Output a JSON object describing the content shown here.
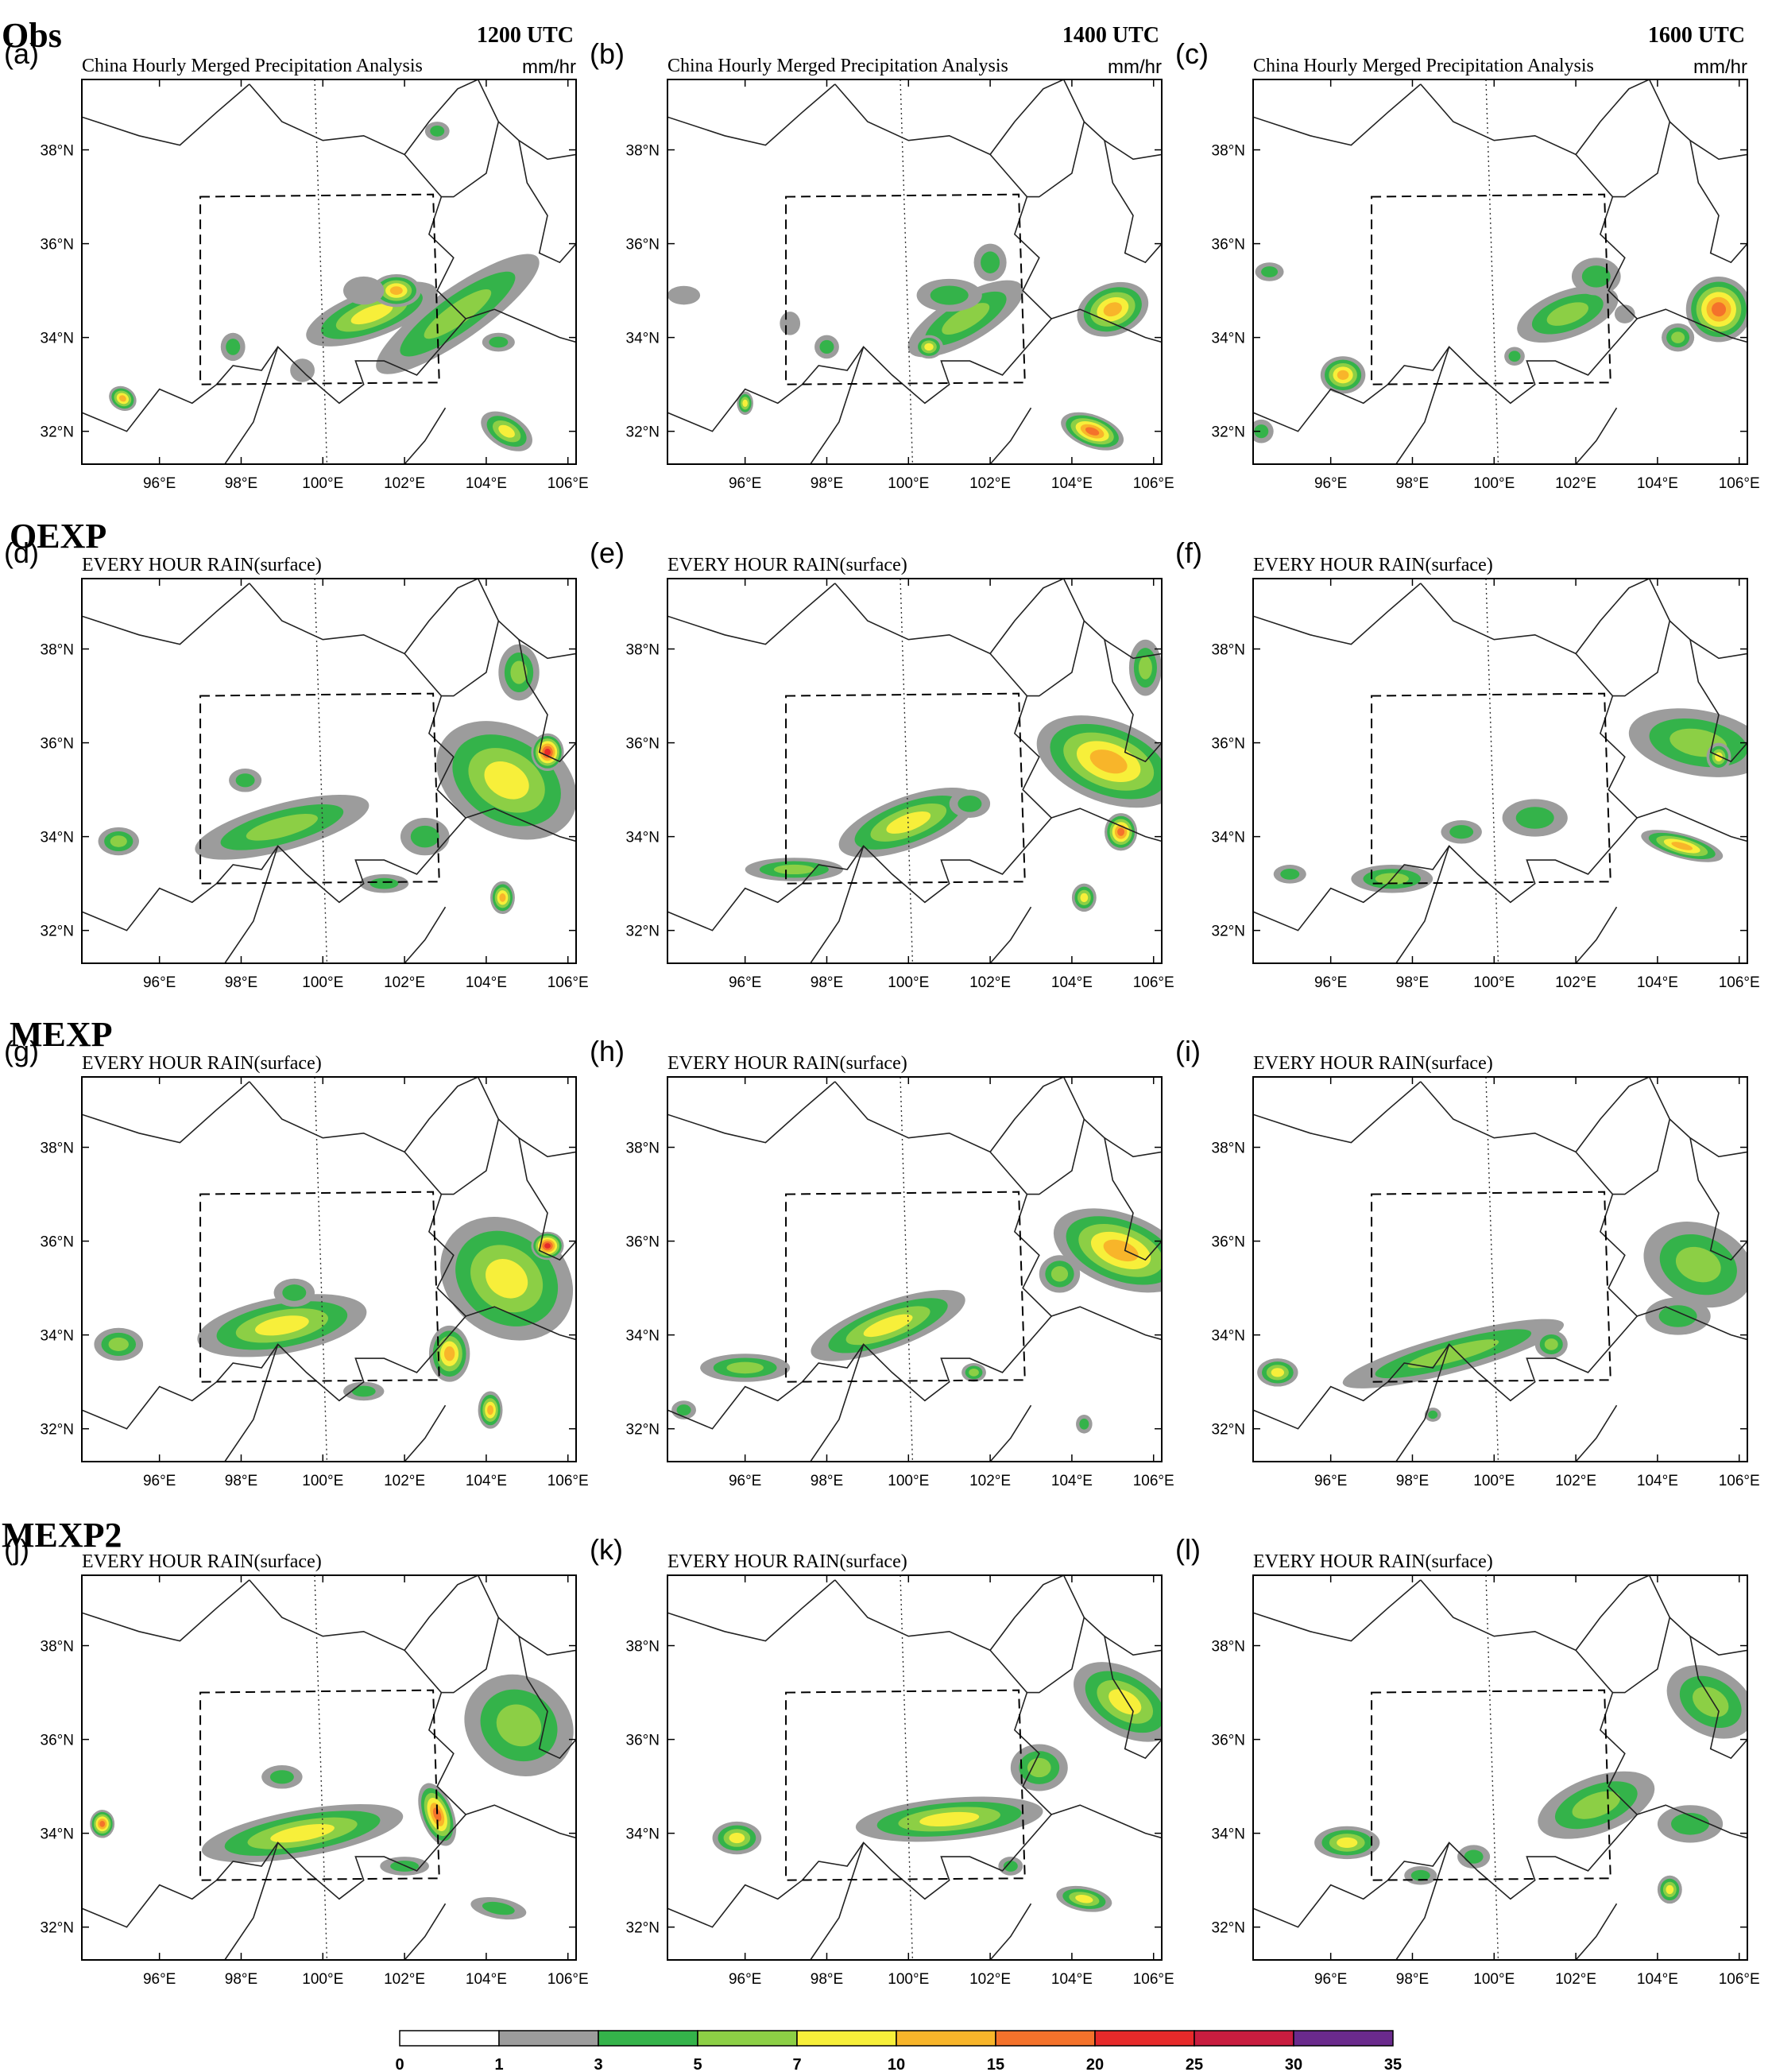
{
  "chart_data": {
    "type": "heatmap",
    "row_labels": [
      "Obs",
      "OEXP",
      "MEXP",
      "MEXP2"
    ],
    "time_labels": [
      "1200 UTC",
      "1400 UTC",
      "1600 UTC"
    ],
    "panel_labels": [
      "(a)",
      "(b)",
      "(c)",
      "(d)",
      "(e)",
      "(f)",
      "(g)",
      "(h)",
      "(i)",
      "(j)",
      "(k)",
      "(l)"
    ],
    "obs_title": "China Hourly Merged Precipitation Analysis",
    "model_title": "EVERY HOUR RAIN(surface)",
    "units": "mm/hr",
    "x_ticks": [
      "96°E",
      "98°E",
      "100°E",
      "102°E",
      "104°E",
      "106°E"
    ],
    "x_tick_values": [
      96,
      98,
      100,
      102,
      104,
      106
    ],
    "y_ticks": [
      "32°N",
      "34°N",
      "36°N",
      "38°N"
    ],
    "y_tick_values": [
      32,
      34,
      36,
      38
    ],
    "xlim": [
      94.1,
      106.2
    ],
    "ylim": [
      31.3,
      39.5
    ],
    "analysis_box": {
      "lon": [
        97,
        102.8
      ],
      "lat": [
        33,
        37
      ]
    },
    "colorbar": {
      "levels": [
        0,
        1,
        3,
        5,
        7,
        10,
        15,
        20,
        25,
        30,
        35
      ],
      "level_labels": [
        "0",
        "1",
        "3",
        "5",
        "7",
        "10",
        "15",
        "20",
        "25",
        "30",
        "35"
      ],
      "colors": [
        "#ffffff",
        "#9c9c9c",
        "#34b34a",
        "#8ccf45",
        "#f7ef3a",
        "#f8b52a",
        "#f4722b",
        "#e62a2a",
        "#c81d3f",
        "#6a2a8c",
        "#3f58b5"
      ]
    },
    "rain_blobs": [
      [
        [
          103.3,
          34.5,
          2.4,
          0.55,
          5,
          35
        ],
        [
          101.2,
          34.5,
          1.7,
          0.5,
          7,
          20
        ],
        [
          101.8,
          35,
          0.6,
          0.35,
          10,
          0
        ],
        [
          104.5,
          32.0,
          0.4,
          0.6,
          7,
          60
        ],
        [
          95.1,
          32.7,
          0.35,
          0.25,
          10,
          -30
        ],
        [
          97.8,
          33.8,
          0.3,
          0.3,
          3,
          0
        ],
        [
          104.3,
          33.9,
          0.4,
          0.2,
          3,
          0
        ],
        [
          99.5,
          33.3,
          0.3,
          0.25,
          1,
          0
        ],
        [
          101.0,
          35.0,
          0.5,
          0.3,
          1,
          0
        ],
        [
          102.8,
          38.4,
          0.3,
          0.2,
          3,
          0
        ]
      ],
      [
        [
          105.0,
          34.6,
          0.9,
          0.55,
          10,
          20
        ],
        [
          104.5,
          32.0,
          0.4,
          0.7,
          15,
          70
        ],
        [
          101.4,
          34.4,
          1.6,
          0.5,
          5,
          30
        ],
        [
          101.0,
          34.9,
          0.8,
          0.35,
          3,
          0
        ],
        [
          100.5,
          33.8,
          0.35,
          0.25,
          7,
          0
        ],
        [
          102.0,
          35.6,
          0.4,
          0.4,
          3,
          0
        ],
        [
          96.0,
          32.6,
          0.2,
          0.25,
          7,
          0
        ],
        [
          98.0,
          33.8,
          0.3,
          0.25,
          3,
          0
        ],
        [
          94.5,
          34.9,
          0.4,
          0.2,
          1,
          0
        ],
        [
          97.1,
          34.3,
          0.25,
          0.25,
          1,
          0
        ]
      ],
      [
        [
          96.3,
          33.2,
          0.55,
          0.4,
          10,
          0
        ],
        [
          105.5,
          34.6,
          0.8,
          0.7,
          15,
          50
        ],
        [
          101.8,
          34.5,
          1.3,
          0.5,
          5,
          20
        ],
        [
          102.5,
          35.3,
          0.6,
          0.4,
          3,
          0
        ],
        [
          94.5,
          35.4,
          0.35,
          0.2,
          3,
          0
        ],
        [
          100.5,
          33.6,
          0.25,
          0.2,
          3,
          0
        ],
        [
          104.5,
          34.0,
          0.4,
          0.3,
          5,
          0
        ],
        [
          94.3,
          32.0,
          0.3,
          0.25,
          3,
          0
        ],
        [
          103.2,
          34.5,
          0.25,
          0.2,
          1,
          0
        ]
      ],
      [
        [
          104.5,
          35.2,
          1.3,
          1.6,
          7,
          60
        ],
        [
          105.5,
          35.8,
          0.4,
          0.4,
          20,
          0
        ],
        [
          99.0,
          34.2,
          2.2,
          0.5,
          5,
          15
        ],
        [
          102.5,
          34.0,
          0.6,
          0.4,
          3,
          0
        ],
        [
          104.4,
          32.7,
          0.3,
          0.35,
          10,
          0
        ],
        [
          95.0,
          33.9,
          0.5,
          0.3,
          5,
          0
        ],
        [
          101.5,
          33.0,
          0.6,
          0.2,
          3,
          0
        ],
        [
          104.8,
          37.5,
          0.5,
          0.6,
          5,
          0
        ],
        [
          98.1,
          35.2,
          0.4,
          0.25,
          3,
          0
        ]
      ],
      [
        [
          104.9,
          35.6,
          1.0,
          1.6,
          10,
          70
        ],
        [
          100.0,
          34.3,
          1.8,
          0.55,
          7,
          20
        ],
        [
          97.2,
          33.3,
          1.2,
          0.25,
          5,
          0
        ],
        [
          104.3,
          32.7,
          0.3,
          0.3,
          7,
          0
        ],
        [
          105.2,
          34.1,
          0.4,
          0.4,
          15,
          0
        ],
        [
          101.5,
          34.7,
          0.5,
          0.3,
          3,
          0
        ],
        [
          105.8,
          37.6,
          0.4,
          0.6,
          5,
          0
        ]
      ],
      [
        [
          105.0,
          36.0,
          0.8,
          1.5,
          5,
          80
        ],
        [
          104.6,
          33.8,
          0.3,
          0.9,
          10,
          75
        ],
        [
          97.5,
          33.1,
          1.0,
          0.3,
          5,
          0
        ],
        [
          101.0,
          34.4,
          0.8,
          0.4,
          3,
          0
        ],
        [
          99.2,
          34.1,
          0.5,
          0.25,
          3,
          0
        ],
        [
          105.5,
          35.7,
          0.3,
          0.3,
          7,
          0
        ],
        [
          95.0,
          33.2,
          0.4,
          0.2,
          3,
          0
        ]
      ],
      [
        [
          104.5,
          35.2,
          1.4,
          1.5,
          7,
          55
        ],
        [
          105.5,
          35.9,
          0.4,
          0.3,
          20,
          0
        ],
        [
          99.0,
          34.2,
          2.1,
          0.6,
          7,
          10
        ],
        [
          103.1,
          33.6,
          0.5,
          0.6,
          10,
          0
        ],
        [
          104.1,
          32.4,
          0.3,
          0.4,
          10,
          0
        ],
        [
          95.0,
          33.8,
          0.6,
          0.35,
          5,
          0
        ],
        [
          101.0,
          32.8,
          0.5,
          0.2,
          3,
          0
        ],
        [
          99.3,
          34.9,
          0.5,
          0.3,
          3,
          0
        ]
      ],
      [
        [
          105.2,
          35.8,
          0.9,
          1.5,
          10,
          70
        ],
        [
          99.5,
          34.2,
          2.0,
          0.5,
          7,
          20
        ],
        [
          96.0,
          33.3,
          1.1,
          0.3,
          5,
          0
        ],
        [
          101.6,
          33.2,
          0.3,
          0.2,
          5,
          0
        ],
        [
          104.3,
          32.1,
          0.2,
          0.2,
          3,
          0
        ],
        [
          103.7,
          35.3,
          0.5,
          0.4,
          5,
          0
        ],
        [
          94.5,
          32.4,
          0.3,
          0.2,
          3,
          0
        ]
      ],
      [
        [
          105.0,
          35.5,
          1.0,
          1.2,
          5,
          70
        ],
        [
          99.0,
          33.6,
          2.8,
          0.4,
          5,
          15
        ],
        [
          94.7,
          33.2,
          0.5,
          0.3,
          7,
          0
        ],
        [
          101.4,
          33.8,
          0.4,
          0.3,
          5,
          0
        ],
        [
          104.5,
          34.4,
          0.8,
          0.4,
          3,
          0
        ],
        [
          98.5,
          32.3,
          0.2,
          0.15,
          3,
          0
        ]
      ],
      [
        [
          104.8,
          36.3,
          1.2,
          1.2,
          5,
          60
        ],
        [
          99.5,
          34.0,
          2.5,
          0.5,
          7,
          10
        ],
        [
          94.6,
          34.2,
          0.3,
          0.3,
          15,
          0
        ],
        [
          102.8,
          34.4,
          0.4,
          0.7,
          15,
          20
        ],
        [
          104.3,
          32.4,
          0.25,
          0.6,
          3,
          80
        ],
        [
          102.0,
          33.3,
          0.6,
          0.2,
          3,
          0
        ],
        [
          99.0,
          35.2,
          0.5,
          0.25,
          3,
          0
        ]
      ],
      [
        [
          101.0,
          34.3,
          2.3,
          0.45,
          7,
          5
        ],
        [
          105.3,
          36.8,
          0.8,
          1.2,
          7,
          60
        ],
        [
          103.2,
          35.4,
          0.7,
          0.5,
          5,
          0
        ],
        [
          104.3,
          32.6,
          0.3,
          0.6,
          7,
          80
        ],
        [
          95.8,
          33.9,
          0.6,
          0.35,
          7,
          0
        ],
        [
          102.5,
          33.3,
          0.3,
          0.2,
          3,
          0
        ]
      ],
      [
        [
          102.5,
          34.6,
          1.5,
          0.6,
          5,
          20
        ],
        [
          105.3,
          36.8,
          0.8,
          1.0,
          5,
          60
        ],
        [
          96.4,
          33.8,
          0.8,
          0.35,
          7,
          0
        ],
        [
          104.3,
          32.8,
          0.3,
          0.3,
          7,
          0
        ],
        [
          99.5,
          33.5,
          0.4,
          0.25,
          3,
          0
        ],
        [
          104.8,
          34.2,
          0.8,
          0.4,
          3,
          0
        ],
        [
          98.2,
          33.1,
          0.4,
          0.2,
          3,
          0
        ]
      ]
    ]
  }
}
